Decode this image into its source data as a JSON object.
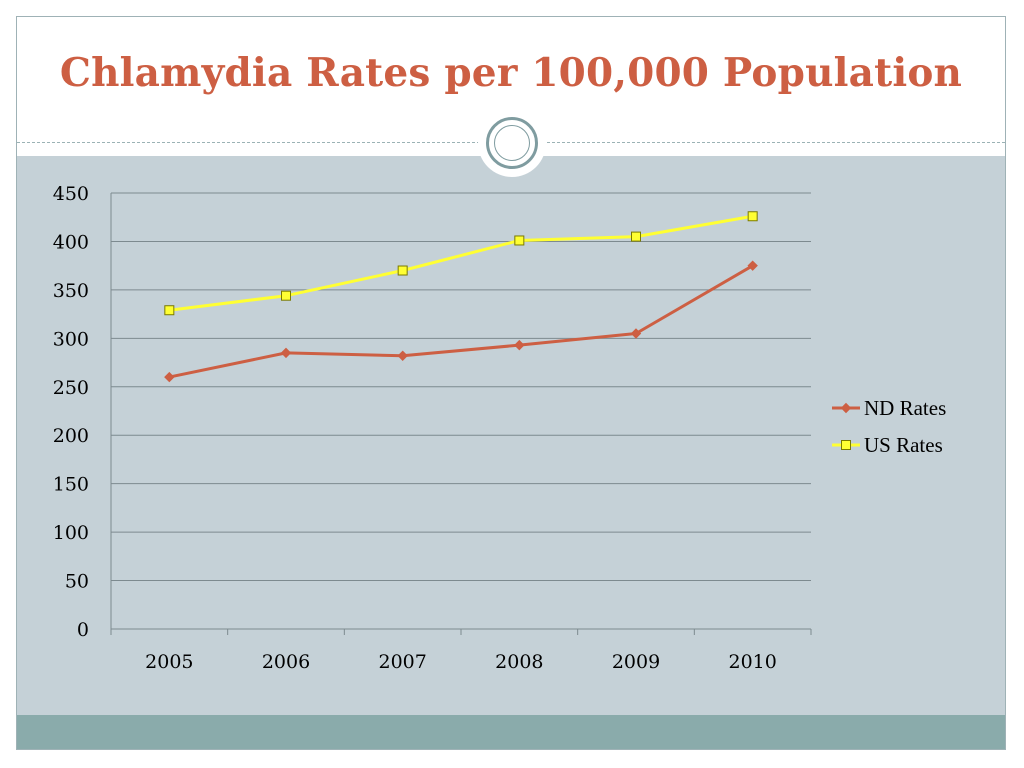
{
  "slide": {
    "title": "Chlamydia Rates per 100,000 Population",
    "colors": {
      "title": "#cd5f43",
      "content_background": "#c5d1d7",
      "footer_band": "#8aabab"
    }
  },
  "chart_data": {
    "type": "line",
    "title": "",
    "xlabel": "",
    "ylabel": "",
    "categories": [
      "2005",
      "2006",
      "2007",
      "2008",
      "2009",
      "2010"
    ],
    "ylim": [
      0,
      450
    ],
    "yticks": [
      0,
      50,
      100,
      150,
      200,
      250,
      300,
      350,
      400,
      450
    ],
    "grid": true,
    "legend_position": "right",
    "series": [
      {
        "name": "ND Rates",
        "color": "#cd5f43",
        "marker": "diamond",
        "values": [
          260,
          285,
          282,
          293,
          305,
          375
        ]
      },
      {
        "name": "US Rates",
        "color": "#ffff33",
        "marker": "square",
        "values": [
          329,
          344,
          370,
          401,
          405,
          426
        ]
      }
    ]
  }
}
